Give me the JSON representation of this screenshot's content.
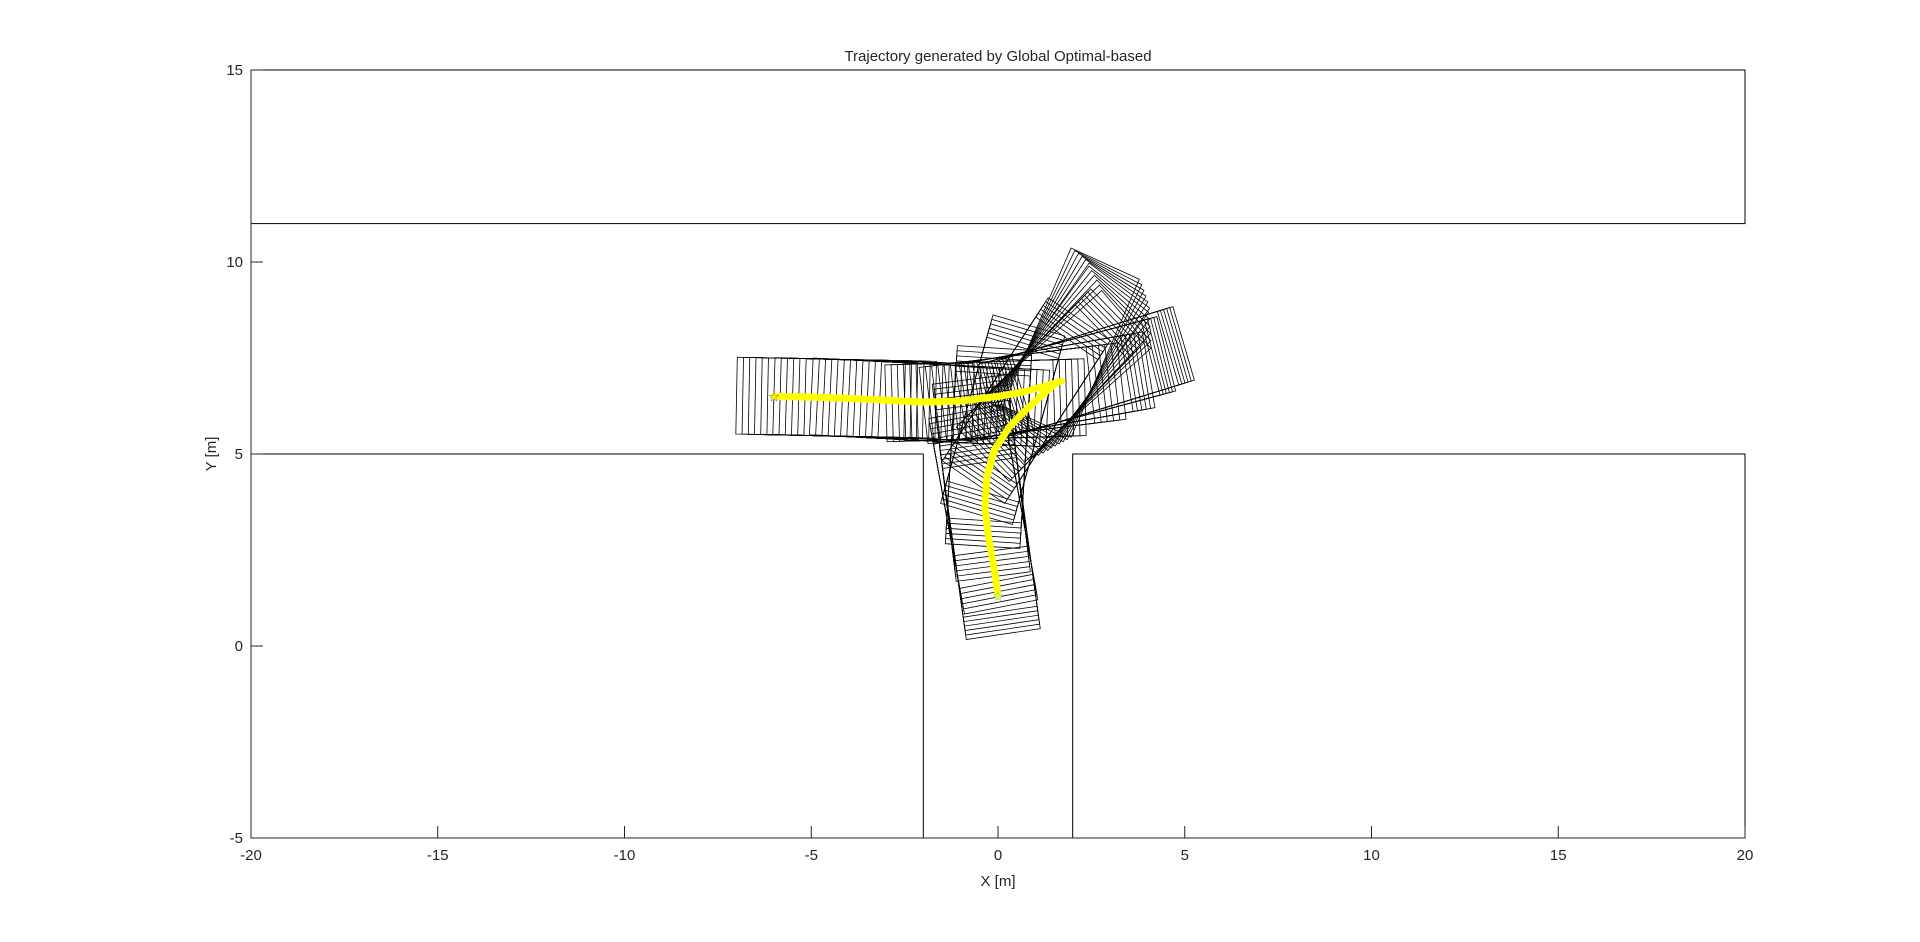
{
  "chart_data": {
    "type": "line",
    "title": "Trajectory generated by Global Optimal-based",
    "xlabel": "X [m]",
    "ylabel": "Y [m]",
    "xlim": [
      -20,
      20
    ],
    "ylim": [
      -5,
      15
    ],
    "xticks": [
      -20,
      -15,
      -10,
      -5,
      0,
      5,
      10,
      15,
      20
    ],
    "yticks": [
      -5,
      0,
      5,
      10,
      15
    ],
    "grid": false,
    "obstacles": [
      {
        "name": "top-road-boundary",
        "x": [
          -20,
          20
        ],
        "y": [
          11,
          15
        ]
      },
      {
        "name": "lower-left-block",
        "x": [
          -20,
          -2
        ],
        "y": [
          -5,
          5
        ]
      },
      {
        "name": "lower-right-block",
        "x": [
          2,
          20
        ],
        "y": [
          -5,
          5
        ]
      }
    ],
    "series": [
      {
        "color": "#ffff00",
        "start_marker_color": "#7e2f8e",
        "x": [
          -6,
          -5,
          -4,
          -3,
          -2,
          -1,
          0,
          0.7,
          1.2,
          1.7
        ],
        "y": [
          6.5,
          6.48,
          6.45,
          6.4,
          6.35,
          6.38,
          6.5,
          6.62,
          6.75,
          6.9
        ]
      },
      {
        "color": "#ffff00",
        "start_marker_color": "#4dbeee",
        "x": [
          0,
          -0.1,
          -0.25,
          -0.35,
          -0.3,
          -0.1,
          0.3,
          0.8,
          1.2,
          1.5
        ],
        "y": [
          1.3,
          2.0,
          2.8,
          3.6,
          4.4,
          5.1,
          5.7,
          6.2,
          6.55,
          6.8
        ]
      }
    ],
    "colors": {
      "footprint": "#000000",
      "axes": "#262626"
    }
  }
}
